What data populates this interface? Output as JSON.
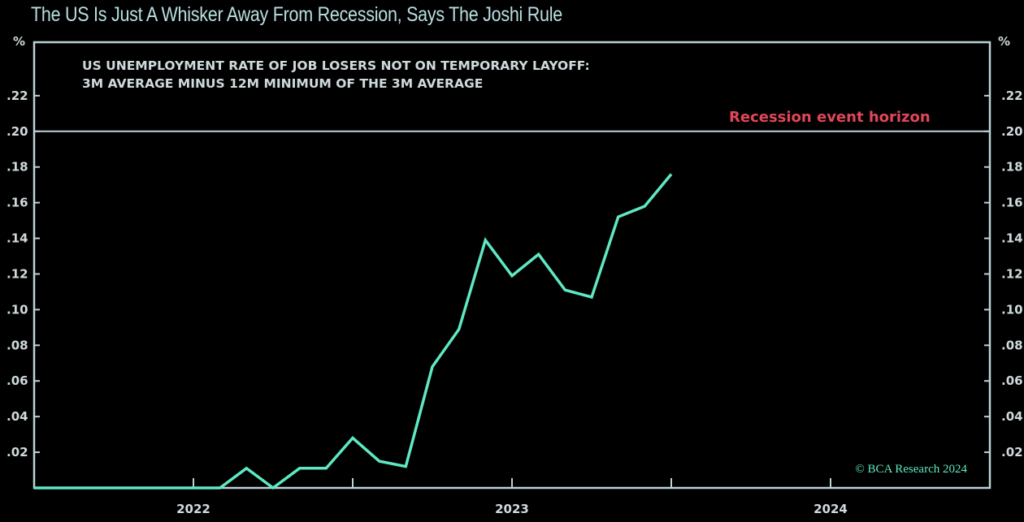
{
  "chart_data": {
    "type": "line",
    "title": "The US Is Just A Whisker Away From Recession, Says The Joshi Rule",
    "subtitle": [
      "US UNEMPLOYMENT RATE OF JOB LOSERS NOT ON TEMPORARY LAYOFF:",
      "3M AVERAGE MINUS 12M MINIMUM OF THE 3M AVERAGE"
    ],
    "ylabel_left": "%",
    "ylabel_right": "%",
    "ylim": [
      0,
      0.25
    ],
    "xlim": [
      "2021-07",
      "2024-07"
    ],
    "y_ticks": [
      ".02",
      ".04",
      ".06",
      ".08",
      ".10",
      ".12",
      ".14",
      ".16",
      ".18",
      ".20",
      ".22"
    ],
    "y_tick_values": [
      0.02,
      0.04,
      0.06,
      0.08,
      0.1,
      0.12,
      0.14,
      0.16,
      0.18,
      0.2,
      0.22
    ],
    "x_tick_labels": [
      "2022",
      "2023",
      "2024"
    ],
    "annotation": "Recession event horizon",
    "threshold": 0.2,
    "source": "© BCA Research 2024",
    "colors": {
      "line": "#5fe8c3",
      "axis": "#bcd2d6",
      "annotation": "#e0465a",
      "text": "#cfdadc",
      "title": "#b9dfe2"
    },
    "series": [
      {
        "name": "Joshi Rule",
        "x": [
          "2021-07",
          "2021-08",
          "2021-09",
          "2021-10",
          "2021-11",
          "2021-12",
          "2022-01",
          "2022-02",
          "2022-03",
          "2022-04",
          "2022-05",
          "2022-06",
          "2022-07",
          "2022-08",
          "2022-09",
          "2022-10",
          "2022-11",
          "2022-12",
          "2023-01",
          "2023-02",
          "2023-03",
          "2023-04",
          "2023-05",
          "2023-06",
          "2023-07"
        ],
        "values": [
          0,
          0,
          0,
          0,
          0,
          0,
          0,
          0,
          0.011,
          0,
          0.011,
          0.011,
          0.028,
          0.015,
          0.012,
          0.068,
          0.089,
          0.139,
          0.119,
          0.131,
          0.111,
          0.107,
          0.152,
          0.158,
          0.176
        ]
      }
    ]
  }
}
